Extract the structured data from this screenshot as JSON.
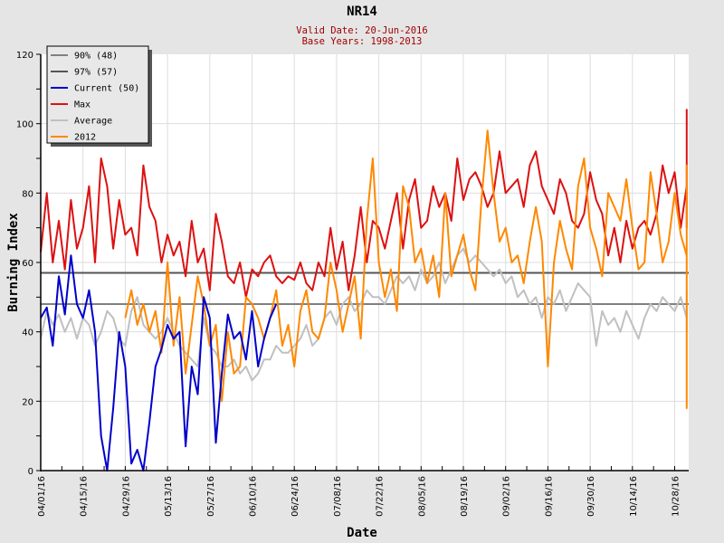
{
  "chart_data": {
    "type": "line",
    "title": "NR14",
    "subtitle_lines": [
      "Valid Date: 20-Jun-2016",
      "Base Years: 1998-2013"
    ],
    "xlabel": "Date",
    "ylabel": "Burning Index",
    "ylim": [
      0,
      120
    ],
    "yticks": [
      0,
      20,
      40,
      60,
      80,
      100,
      120
    ],
    "x_unit": "days since 04/01/16",
    "xlim": [
      0,
      214
    ],
    "xticks": [
      {
        "day": 0,
        "label": "04/01/16"
      },
      {
        "day": 14,
        "label": "04/15/16"
      },
      {
        "day": 28,
        "label": "04/29/16"
      },
      {
        "day": 42,
        "label": "05/13/16"
      },
      {
        "day": 56,
        "label": "05/27/16"
      },
      {
        "day": 70,
        "label": "06/10/16"
      },
      {
        "day": 84,
        "label": "06/24/16"
      },
      {
        "day": 98,
        "label": "07/08/16"
      },
      {
        "day": 112,
        "label": "07/22/16"
      },
      {
        "day": 126,
        "label": "08/05/16"
      },
      {
        "day": 140,
        "label": "08/19/16"
      },
      {
        "day": 154,
        "label": "09/02/16"
      },
      {
        "day": 168,
        "label": "09/16/16"
      },
      {
        "day": 182,
        "label": "09/30/16"
      },
      {
        "day": 196,
        "label": "10/14/16"
      },
      {
        "day": 210,
        "label": "10/28/16"
      }
    ],
    "grid": true,
    "legend_position": "top-left",
    "reference_lines": [
      {
        "name": "90% (48)",
        "value": 48,
        "color": "#808080"
      },
      {
        "name": "97% (57)",
        "value": 57,
        "color": "#555555"
      }
    ],
    "series": [
      {
        "name": "Current (50)",
        "color": "#0000cc",
        "start_day": 0,
        "step": 2,
        "values": [
          44,
          47,
          36,
          56,
          45,
          62,
          48,
          44,
          52,
          40,
          10,
          0,
          18,
          40,
          30,
          2,
          6,
          0,
          14,
          30,
          35,
          42,
          38,
          40,
          7,
          30,
          22,
          50,
          44,
          8,
          28,
          45,
          38,
          40,
          32,
          46,
          30,
          38,
          44,
          48
        ]
      },
      {
        "name": "Max",
        "color": "#dd1111",
        "start_day": 0,
        "step": 2,
        "values": [
          63,
          80,
          60,
          72,
          58,
          78,
          64,
          70,
          82,
          60,
          90,
          82,
          64,
          78,
          68,
          70,
          62,
          88,
          76,
          72,
          60,
          68,
          62,
          66,
          56,
          72,
          60,
          64,
          52,
          74,
          66,
          56,
          54,
          60,
          50,
          58,
          56,
          60,
          62,
          56,
          54,
          56,
          55,
          60,
          54,
          52,
          60,
          56,
          70,
          58,
          66,
          52,
          62,
          76,
          60,
          72,
          70,
          64,
          72,
          80,
          64,
          78,
          84,
          70,
          72,
          82,
          76,
          80,
          72,
          90,
          78,
          84,
          86,
          82,
          76,
          80,
          92,
          80,
          82,
          84,
          76,
          88,
          92,
          82,
          78,
          74,
          84,
          80,
          72,
          70,
          74,
          86,
          78,
          74,
          62,
          70,
          60,
          72,
          64,
          70,
          72,
          68,
          74,
          88,
          80,
          86,
          70,
          82,
          90,
          84,
          78,
          76,
          104,
          70
        ]
      },
      {
        "name": "Average",
        "color": "#c0c0c0",
        "start_day": 0,
        "step": 2,
        "values": [
          38,
          46,
          42,
          45,
          40,
          44,
          38,
          44,
          42,
          36,
          40,
          46,
          44,
          38,
          36,
          46,
          50,
          42,
          40,
          38,
          40,
          44,
          40,
          36,
          34,
          32,
          30,
          44,
          36,
          34,
          30,
          30,
          32,
          28,
          30,
          26,
          28,
          32,
          32,
          36,
          34,
          34,
          36,
          38,
          42,
          36,
          38,
          44,
          46,
          42,
          48,
          50,
          46,
          48,
          52,
          50,
          50,
          48,
          52,
          56,
          54,
          56,
          52,
          58,
          54,
          56,
          60,
          54,
          58,
          62,
          64,
          60,
          62,
          60,
          58,
          56,
          58,
          54,
          56,
          50,
          52,
          48,
          50,
          44,
          50,
          48,
          52,
          46,
          50,
          54,
          52,
          50,
          36,
          46,
          42,
          44,
          40,
          46,
          42,
          38,
          44,
          48,
          46,
          50,
          48,
          46,
          50,
          44,
          50,
          52,
          48,
          44,
          40,
          48
        ]
      },
      {
        "name": "2012",
        "color": "#ff8800",
        "start_day": 28,
        "step": 2,
        "values": [
          44,
          52,
          42,
          48,
          40,
          46,
          34,
          60,
          36,
          50,
          28,
          42,
          56,
          48,
          36,
          42,
          20,
          40,
          28,
          30,
          50,
          48,
          44,
          38,
          44,
          52,
          36,
          42,
          30,
          46,
          52,
          40,
          38,
          44,
          60,
          52,
          40,
          48,
          56,
          38,
          72,
          90,
          60,
          50,
          58,
          46,
          82,
          76,
          60,
          64,
          54,
          62,
          50,
          80,
          56,
          62,
          68,
          58,
          52,
          78,
          98,
          80,
          66,
          70,
          60,
          62,
          54,
          66,
          76,
          66,
          30,
          60,
          72,
          64,
          58,
          82,
          90,
          70,
          64,
          56,
          80,
          76,
          72,
          84,
          70,
          58,
          60,
          86,
          74,
          60,
          66,
          80,
          68,
          62,
          40,
          18,
          30,
          60,
          78,
          88,
          48,
          36,
          42,
          60,
          44,
          30,
          36,
          30,
          32,
          40,
          38,
          52
        ]
      }
    ]
  },
  "legend": {
    "items": [
      "90% (48)",
      "97% (57)",
      "Current (50)",
      "Max",
      "Average",
      "2012"
    ]
  }
}
